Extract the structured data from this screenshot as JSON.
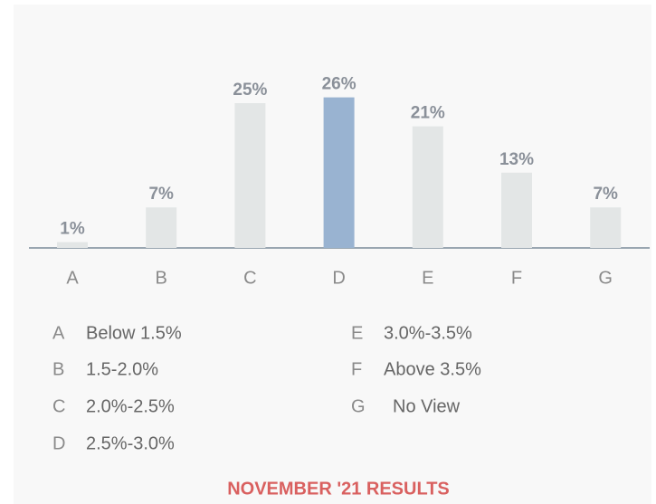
{
  "chart_data": {
    "type": "bar",
    "title": "NOVEMBER '21 RESULTS",
    "categories": [
      "A",
      "B",
      "C",
      "D",
      "E",
      "F",
      "G"
    ],
    "values": [
      1,
      7,
      25,
      26,
      21,
      13,
      7
    ],
    "value_labels": [
      "1%",
      "7%",
      "25%",
      "26%",
      "21%",
      "13%",
      "7%"
    ],
    "colors": [
      "#e3e6e6",
      "#e3e6e6",
      "#e3e6e6",
      "#99b3d1",
      "#e3e6e6",
      "#e3e6e6",
      "#e3e6e6"
    ],
    "legend_labels": [
      "Below 1.5%",
      "1.5-2.0%",
      "2.0%-2.5%",
      "2.5%-3.0%",
      "3.0%-3.5%",
      "Above 3.5%",
      "No View"
    ]
  }
}
